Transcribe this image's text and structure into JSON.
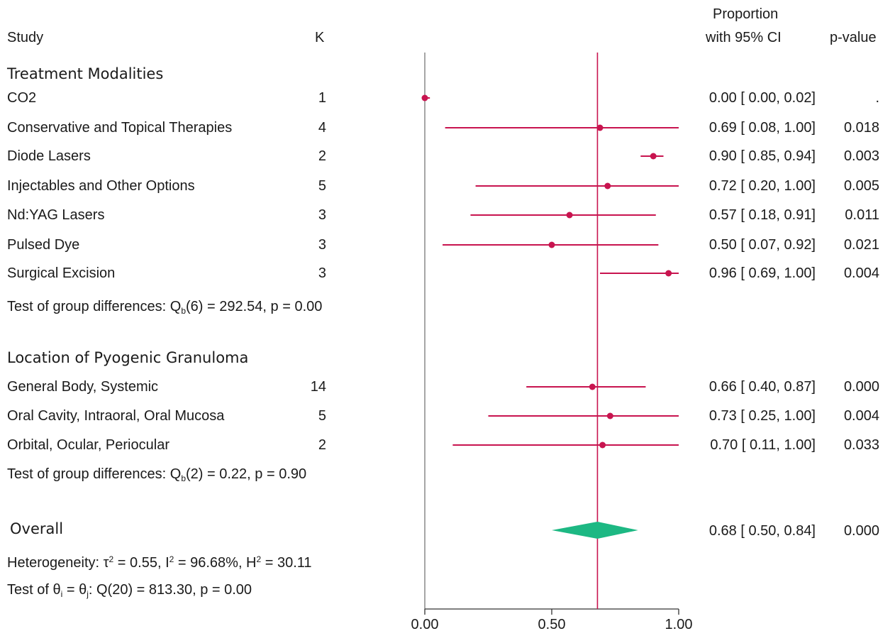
{
  "headers": {
    "study": "Study",
    "k": "K",
    "prop_line1": "Proportion",
    "prop_line2": "with 95% CI",
    "pvalue": "p-value"
  },
  "colors": {
    "line": "#c8144f",
    "diamond": "#1db883",
    "axis": "#555555"
  },
  "chart_data": {
    "type": "forest",
    "xlim": [
      0,
      1
    ],
    "x_ticks": [
      "0.00",
      "0.50",
      "1.00"
    ],
    "reference_line": 0.68,
    "groups": [
      {
        "title": "Treatment Modalities",
        "studies": [
          {
            "label": "CO2",
            "k": "1",
            "est": 0.0,
            "lo": 0.0,
            "hi": 0.02,
            "ci_text": "0.00 [ 0.00,  0.02]",
            "p": "."
          },
          {
            "label": "Conservative and Topical Therapies",
            "k": "4",
            "est": 0.69,
            "lo": 0.08,
            "hi": 1.0,
            "ci_text": "0.69 [ 0.08,  1.00]",
            "p": "0.018"
          },
          {
            "label": "Diode Lasers",
            "k": "2",
            "est": 0.9,
            "lo": 0.85,
            "hi": 0.94,
            "ci_text": "0.90 [ 0.85,  0.94]",
            "p": "0.003"
          },
          {
            "label": "Injectables and Other Options",
            "k": "5",
            "est": 0.72,
            "lo": 0.2,
            "hi": 1.0,
            "ci_text": "0.72 [ 0.20,  1.00]",
            "p": "0.005"
          },
          {
            "label": "Nd:YAG Lasers",
            "k": "3",
            "est": 0.57,
            "lo": 0.18,
            "hi": 0.91,
            "ci_text": "0.57 [ 0.18,  0.91]",
            "p": "0.011"
          },
          {
            "label": "Pulsed Dye",
            "k": "3",
            "est": 0.5,
            "lo": 0.07,
            "hi": 0.92,
            "ci_text": "0.50 [ 0.07,  0.92]",
            "p": "0.021"
          },
          {
            "label": "Surgical Excision",
            "k": "3",
            "est": 0.96,
            "lo": 0.69,
            "hi": 1.0,
            "ci_text": "0.96 [ 0.69,  1.00]",
            "p": "0.004"
          }
        ],
        "test_prefix": "Test of group differences: Q",
        "test_sub": "b",
        "test_suffix": "(6) = 292.54, p = 0.00"
      },
      {
        "title": "Location of Pyogenic Granuloma",
        "studies": [
          {
            "label": "General Body, Systemic",
            "k": "14",
            "est": 0.66,
            "lo": 0.4,
            "hi": 0.87,
            "ci_text": "0.66 [ 0.40,  0.87]",
            "p": "0.000"
          },
          {
            "label": "Oral Cavity, Intraoral, Oral Mucosa",
            "k": "5",
            "est": 0.73,
            "lo": 0.25,
            "hi": 1.0,
            "ci_text": "0.73 [ 0.25,  1.00]",
            "p": "0.004"
          },
          {
            "label": "Orbital, Ocular, Periocular",
            "k": "2",
            "est": 0.7,
            "lo": 0.11,
            "hi": 1.0,
            "ci_text": "0.70 [ 0.11,  1.00]",
            "p": "0.033"
          }
        ],
        "test_prefix": "Test of group differences: Q",
        "test_sub": "b",
        "test_suffix": "(2) = 0.22, p = 0.90"
      }
    ],
    "overall": {
      "label": "Overall",
      "est": 0.68,
      "lo": 0.5,
      "hi": 0.84,
      "ci_text": "0.68 [ 0.50,  0.84]",
      "p": "0.000",
      "heterogeneity": {
        "p1": "Heterogeneity: τ",
        "s1": "2",
        "p2": " = 0.55, I",
        "s2": "2",
        "p3": " = 96.68%, H",
        "s3": "2",
        "p4": " = 30.11"
      },
      "theta_test": {
        "p1": "Test of θ",
        "s1": "i",
        "p2": " = θ",
        "s2": "j",
        "p3": ": Q(20) = 813.30, p = 0.00"
      }
    }
  }
}
